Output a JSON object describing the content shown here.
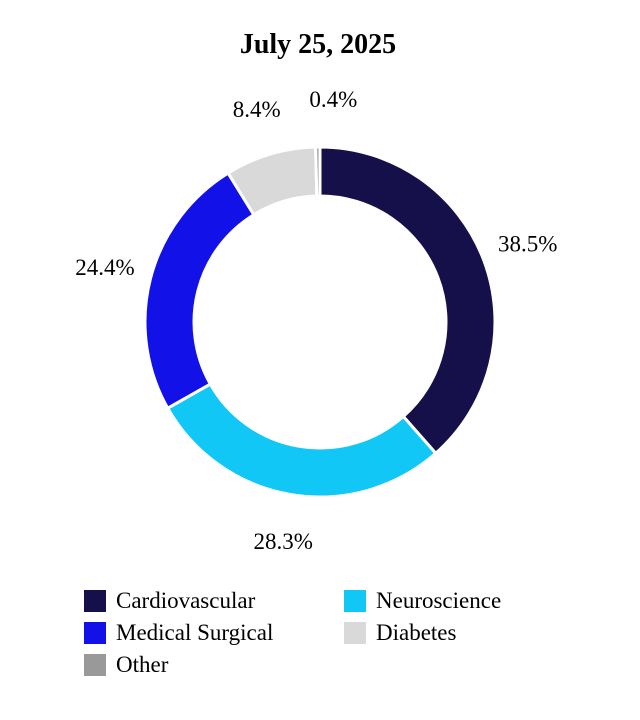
{
  "chart_data": {
    "type": "pie",
    "variant": "donut",
    "title": "July 25, 2025",
    "slices": [
      {
        "name": "Cardiovascular",
        "value": 38.5,
        "label": "38.5%",
        "color": "#150f4a"
      },
      {
        "name": "Neuroscience",
        "value": 28.3,
        "label": "28.3%",
        "color": "#10c7f5"
      },
      {
        "name": "Medical Surgical",
        "value": 24.4,
        "label": "24.4%",
        "color": "#1212e8"
      },
      {
        "name": "Diabetes",
        "value": 8.4,
        "label": "8.4%",
        "color": "#d9d9d9"
      },
      {
        "name": "Other",
        "value": 0.4,
        "label": "0.4%",
        "color": "#999999"
      }
    ],
    "legend": [
      {
        "label": "Cardiovascular",
        "color": "#150f4a"
      },
      {
        "label": "Neuroscience",
        "color": "#10c7f5"
      },
      {
        "label": "Medical Surgical",
        "color": "#1212e8"
      },
      {
        "label": "Diabetes",
        "color": "#d9d9d9"
      },
      {
        "label": "Other",
        "color": "#999999"
      }
    ],
    "legend_position": "bottom"
  }
}
